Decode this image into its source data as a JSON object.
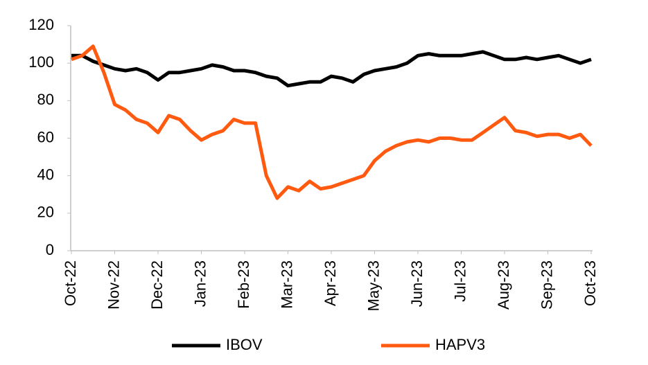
{
  "chart_data": {
    "type": "line",
    "categories": [
      "Oct-22",
      null,
      null,
      null,
      "Nov-22",
      null,
      null,
      null,
      "Dec-22",
      null,
      null,
      null,
      "Jan-23",
      null,
      null,
      null,
      "Feb-23",
      null,
      null,
      null,
      "Mar-23",
      null,
      null,
      null,
      "Apr-23",
      null,
      null,
      null,
      "May-23",
      null,
      null,
      null,
      "Jun-23",
      null,
      null,
      null,
      "Jul-23",
      null,
      null,
      null,
      "Aug-23",
      null,
      null,
      null,
      "Sep-23",
      null,
      null,
      null,
      "Oct-23"
    ],
    "series": [
      {
        "name": "IBOV",
        "color": "#000000",
        "values": [
          104,
          104,
          101,
          99,
          97,
          96,
          97,
          95,
          91,
          95,
          95,
          96,
          97,
          99,
          98,
          96,
          96,
          95,
          93,
          92,
          88,
          89,
          90,
          90,
          93,
          92,
          90,
          94,
          96,
          97,
          98,
          100,
          104,
          105,
          104,
          104,
          104,
          105,
          106,
          104,
          102,
          102,
          103,
          102,
          103,
          104,
          102,
          100,
          102
        ]
      },
      {
        "name": "HAPV3",
        "color": "#ff5a0f",
        "values": [
          102,
          104,
          109,
          95,
          78,
          75,
          70,
          68,
          63,
          72,
          70,
          64,
          59,
          62,
          64,
          70,
          68,
          68,
          40,
          28,
          34,
          32,
          37,
          33,
          34,
          36,
          38,
          40,
          48,
          53,
          56,
          58,
          59,
          58,
          60,
          60,
          59,
          59,
          63,
          67,
          71,
          64,
          63,
          61,
          62,
          62,
          60,
          62,
          56
        ]
      }
    ],
    "ylim": [
      0,
      120
    ],
    "yticks": [
      0,
      20,
      40,
      60,
      80,
      100,
      120
    ],
    "grid": false,
    "legend": "bottom"
  }
}
